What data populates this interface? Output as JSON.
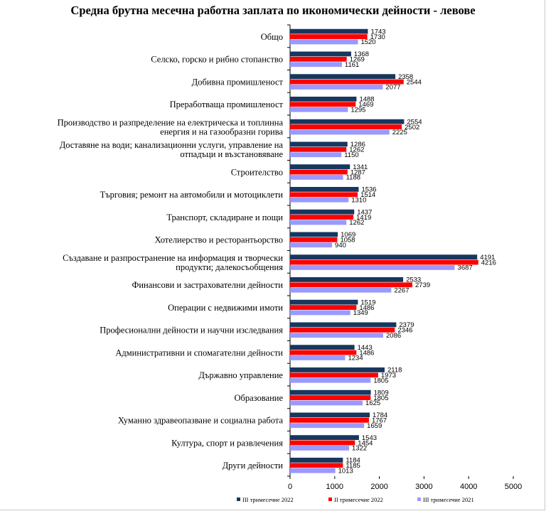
{
  "chart_data": {
    "type": "bar",
    "orientation": "horizontal",
    "title": "Средна брутна месечна работна заплата по икономически дейности - левове",
    "categories": [
      "Общо",
      "Селско, горско и рибно стопанство",
      "Добивна промишленост",
      "Преработваща промишленост",
      "Производство и разпределение  на електрическа и топлинна|енергия и на газообразни горива",
      "Доставяне на води; канализационни услуги, управление на|отпадъци и възстановяване",
      "Строителство",
      "Търговия; ремонт на автомобили и мотоциклети",
      "Транспорт, складиране и пощи",
      "Хотелиерство и ресторантьорство",
      "Създаване и разпространение  на информация и творчески|продукти; далекосъобщения",
      "Финансови и застрахователни дейности",
      "Операции  с недвижими имоти",
      "Професионални дейности и научни изследвания",
      "Административни  и спомагателни дейности",
      "Държавно управление",
      "Образование",
      "Хуманно  здравеопазване и социална работа",
      "Култура,  спорт и развлечения",
      "Други дейности"
    ],
    "series": [
      {
        "name": "III тримесечие 2022",
        "color": "#17375e",
        "values": [
          1743,
          1368,
          2358,
          1488,
          2554,
          1286,
          1341,
          1536,
          1437,
          1069,
          4191,
          2533,
          1519,
          2379,
          1443,
          2118,
          1809,
          1784,
          1543,
          1184
        ]
      },
      {
        "name": "II тримесечие 2022",
        "color": "#ff0000",
        "values": [
          1730,
          1269,
          2544,
          1469,
          2502,
          1262,
          1287,
          1514,
          1419,
          1058,
          4216,
          2739,
          1486,
          2346,
          1486,
          1973,
          1805,
          1767,
          1454,
          1185
        ]
      },
      {
        "name": "III тримесечие 2021",
        "color": "#9999ff",
        "values": [
          1520,
          1161,
          2077,
          1295,
          2225,
          1150,
          1188,
          1310,
          1262,
          940,
          3687,
          2267,
          1349,
          2086,
          1234,
          1805,
          1625,
          1659,
          1322,
          1013
        ]
      }
    ],
    "xlim": [
      0,
      5000
    ],
    "xticks": [
      "0",
      "1000",
      "2000",
      "3000",
      "4000",
      "5000"
    ],
    "legend": "bottom",
    "grid": false
  }
}
